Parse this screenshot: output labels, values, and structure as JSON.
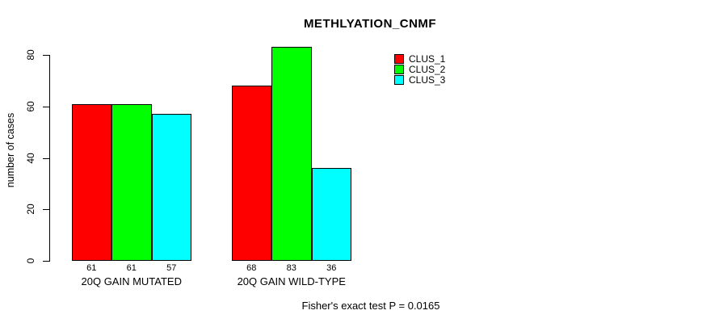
{
  "chart_data": {
    "type": "bar",
    "title": "METHLYATION_CNMF",
    "ylabel": "number of cases",
    "xlabel": "",
    "categories": [
      "20Q GAIN MUTATED",
      "20Q GAIN WILD-TYPE"
    ],
    "series": [
      {
        "name": "CLUS_1",
        "color": "#FF0000",
        "values": [
          61,
          68
        ]
      },
      {
        "name": "CLUS_2",
        "color": "#00FF00",
        "values": [
          61,
          83
        ]
      },
      {
        "name": "CLUS_3",
        "color": "#00FFFF",
        "values": [
          57,
          36
        ]
      }
    ],
    "yticks": [
      0,
      20,
      40,
      60,
      80
    ],
    "ylim": [
      0,
      83
    ],
    "grid": false,
    "legend_position": "top-right",
    "bar_value_labels": [
      [
        61,
        61,
        57
      ],
      [
        68,
        83,
        36
      ]
    ],
    "footnote": "Fisher's exact test P = 0.0165"
  }
}
